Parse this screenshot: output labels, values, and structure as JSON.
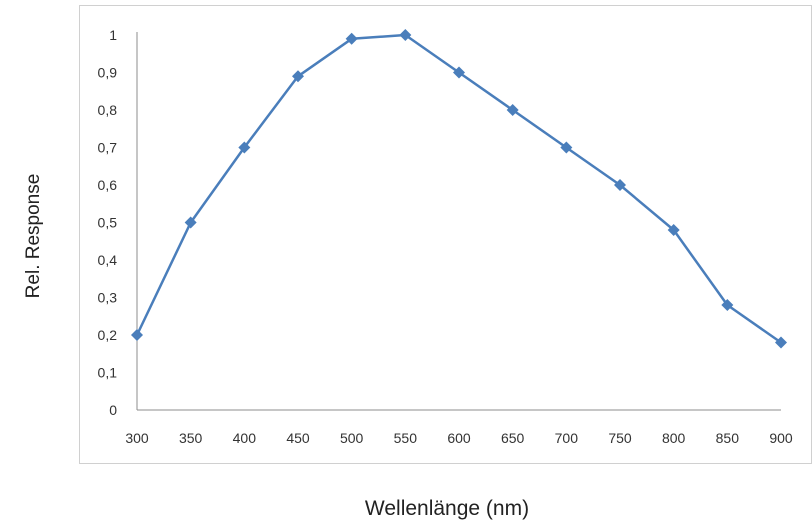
{
  "chart_data": {
    "type": "line",
    "x": [
      300,
      350,
      400,
      450,
      500,
      550,
      600,
      650,
      700,
      750,
      800,
      850,
      900
    ],
    "series": [
      {
        "values": [
          0.2,
          0.5,
          0.7,
          0.89,
          0.99,
          1.0,
          0.9,
          0.8,
          0.7,
          0.6,
          0.48,
          0.28,
          0.18
        ]
      }
    ],
    "xticks": [
      "300",
      "350",
      "400",
      "450",
      "500",
      "550",
      "600",
      "650",
      "700",
      "750",
      "800",
      "850",
      "900"
    ],
    "yticks": [
      "0",
      "0,1",
      "0,2",
      "0,3",
      "0,4",
      "0,5",
      "0,6",
      "0,7",
      "0,8",
      "0,9",
      "1"
    ],
    "xlabel": "Wellenlänge (nm)",
    "ylabel": "Rel. Response",
    "xlim": [
      300,
      900
    ],
    "ylim": [
      0,
      1
    ],
    "grid": false,
    "marker": "diamond",
    "line_color": "#4a7ebb"
  }
}
